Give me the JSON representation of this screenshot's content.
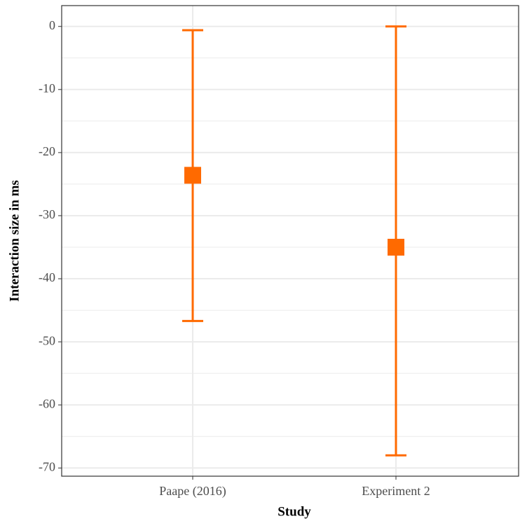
{
  "chart_data": {
    "type": "errorbar",
    "x_label": "Study",
    "y_label": "Interaction size in ms",
    "categories": [
      "Paape (2016)",
      "Experiment 2"
    ],
    "series": [
      {
        "color": "#ff6a00",
        "values": [
          -23.6,
          -35
        ],
        "lower": [
          -46.7,
          -68
        ],
        "upper": [
          -0.6,
          0
        ]
      }
    ],
    "ylim": [
      -71.3,
      3.3
    ],
    "yticks": [
      -70,
      -60,
      -50,
      -40,
      -30,
      -20,
      -10,
      0
    ],
    "minor_yticks": [
      -65,
      -55,
      -45,
      -35,
      -25,
      -15,
      -5
    ],
    "grid": true
  }
}
